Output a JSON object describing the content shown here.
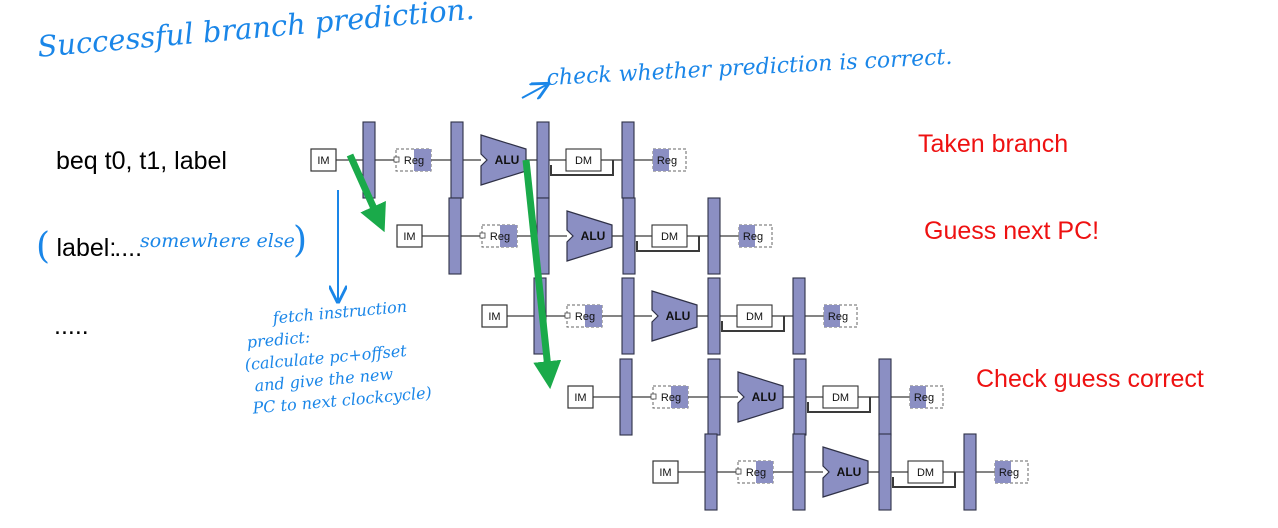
{
  "title_note": "Successful branch prediction.",
  "check_note": "check whether prediction is correct.",
  "code": {
    "line1": "beq t0, t1, label",
    "line2_open": "(",
    "line2_label": "label:",
    "line2_dots": "....",
    "line2_note": "somewhere else",
    "line2_close": ")",
    "line3": "....."
  },
  "fetch_note": [
    "fetch instruction",
    "predict:",
    "(calculate pc+offset",
    "and give the new",
    "PC to next clockcycle)"
  ],
  "annotations": {
    "taken": "Taken branch",
    "guess": "Guess next PC!",
    "check": "Check guess correct"
  },
  "stages": {
    "im": "IM",
    "reg": "Reg",
    "alu": "ALU",
    "dm": "DM",
    "reg_wb": "Reg"
  },
  "colors": {
    "red_text": "#ee1111",
    "hand_blue": "#1a86e8",
    "pipe_fill": "#8b8fc3",
    "pipe_stroke": "#2f3147",
    "arrow_green": "#1aaa4a"
  }
}
